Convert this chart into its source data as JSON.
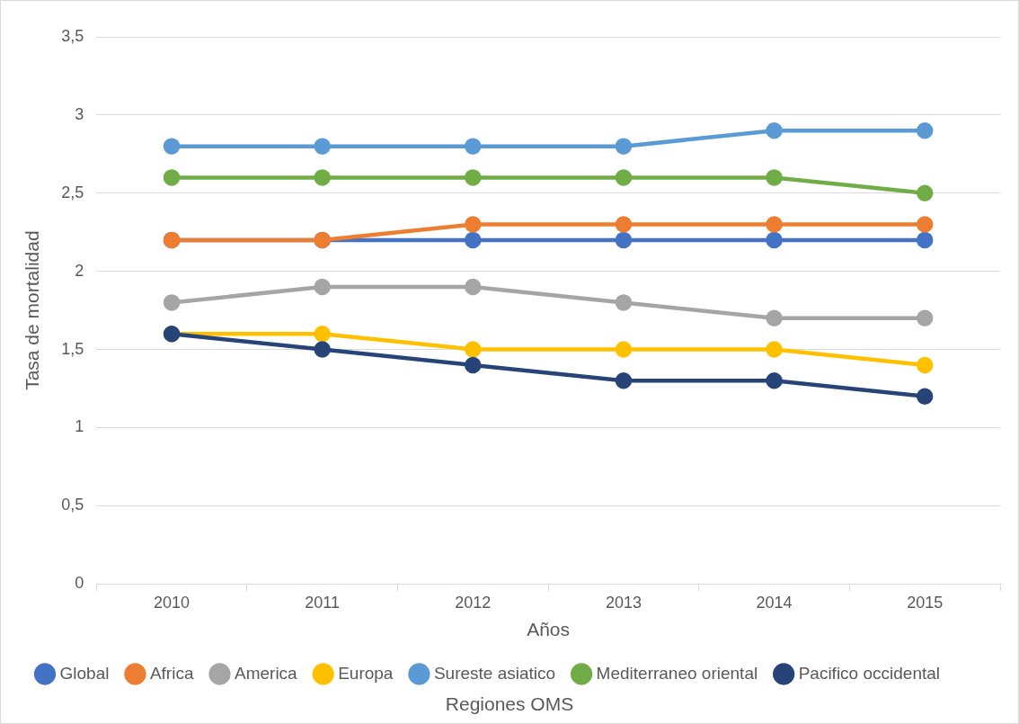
{
  "chart_data": {
    "type": "line",
    "xlabel": "Años",
    "ylabel": "Tasa de mortalidad",
    "legend_title": "Regiones OMS",
    "categories": [
      "2010",
      "2011",
      "2012",
      "2013",
      "2014",
      "2015"
    ],
    "series": [
      {
        "name": "Global",
        "color": "#4472c4",
        "values": [
          2.2,
          2.2,
          2.2,
          2.2,
          2.2,
          2.2
        ]
      },
      {
        "name": "Africa",
        "color": "#ed7d31",
        "values": [
          2.2,
          2.2,
          2.3,
          2.3,
          2.3,
          2.3
        ]
      },
      {
        "name": "America",
        "color": "#a5a5a5",
        "values": [
          1.8,
          1.9,
          1.9,
          1.8,
          1.7,
          1.7
        ]
      },
      {
        "name": "Europa",
        "color": "#ffc000",
        "values": [
          1.6,
          1.6,
          1.5,
          1.5,
          1.5,
          1.4
        ]
      },
      {
        "name": "Sureste asiatico",
        "color": "#5b9bd5",
        "values": [
          2.8,
          2.8,
          2.8,
          2.8,
          2.9,
          2.9
        ]
      },
      {
        "name": "Mediterraneo oriental",
        "color": "#70ad47",
        "values": [
          2.6,
          2.6,
          2.6,
          2.6,
          2.6,
          2.5
        ]
      },
      {
        "name": "Pacifico occidental",
        "color": "#264478",
        "values": [
          1.6,
          1.5,
          1.4,
          1.3,
          1.3,
          1.2
        ]
      }
    ],
    "ylim": [
      0,
      3.5
    ],
    "yticks": [
      0,
      {
        "value": 0.5,
        "label": "0,5"
      },
      1,
      {
        "value": 1.5,
        "label": "1,5"
      },
      2,
      {
        "value": 2.5,
        "label": "2,5"
      },
      3,
      {
        "value": 3.5,
        "label": "3,5"
      }
    ],
    "grid": "y",
    "legend": "bottom",
    "marker": "circle",
    "line_style": "solid"
  }
}
